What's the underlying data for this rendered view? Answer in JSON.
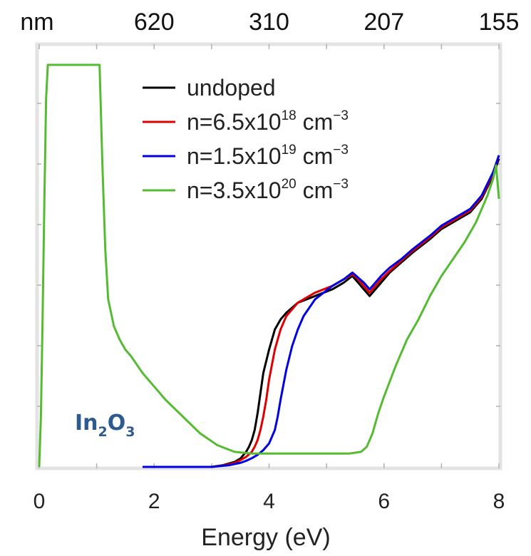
{
  "chart_data": {
    "type": "line",
    "xlabel": "Energy (eV)",
    "x_ticks": [
      "0",
      "2",
      "4",
      "6",
      "8"
    ],
    "xlim": [
      0,
      8
    ],
    "y_ticks": [],
    "top_axis": {
      "unit_label": "nm",
      "ticks": [
        "620",
        "310",
        "207",
        "155"
      ],
      "tick_energies_eV": [
        2,
        4,
        6,
        8
      ]
    },
    "annotation": {
      "base1": "In",
      "sub1": "2",
      "base2": "O",
      "sub2": "3"
    },
    "legend_position": "top-right",
    "series": [
      {
        "key": "undoped",
        "color": "#000000",
        "legend": {
          "prefix": "undoped",
          "sup": "",
          "suffix": "",
          "sup2": ""
        },
        "x": [
          1.8,
          2.2,
          2.6,
          3.0,
          3.2,
          3.4,
          3.5,
          3.6,
          3.65,
          3.7,
          3.75,
          3.8,
          3.85,
          3.9,
          4.0,
          4.1,
          4.2,
          4.3,
          4.5,
          4.8,
          5.1,
          5.3,
          5.45,
          5.55,
          5.65,
          5.75,
          5.85,
          5.95,
          6.1,
          6.3,
          6.5,
          6.8,
          7.0,
          7.2,
          7.5,
          7.7,
          7.9,
          8.0
        ],
        "y": [
          0.0,
          0.0,
          0.0,
          0.0,
          0.005,
          0.015,
          0.025,
          0.045,
          0.06,
          0.08,
          0.11,
          0.16,
          0.22,
          0.28,
          0.35,
          0.41,
          0.44,
          0.46,
          0.49,
          0.51,
          0.53,
          0.55,
          0.57,
          0.55,
          0.53,
          0.51,
          0.53,
          0.55,
          0.58,
          0.61,
          0.64,
          0.68,
          0.71,
          0.73,
          0.76,
          0.8,
          0.87,
          0.92
        ]
      },
      {
        "key": "n1",
        "color": "#e00000",
        "legend": {
          "prefix": "n=6.5x10",
          "sup": "18",
          "suffix": " cm",
          "sup2": "−3"
        },
        "x": [
          1.8,
          2.2,
          2.6,
          3.0,
          3.2,
          3.4,
          3.5,
          3.6,
          3.7,
          3.75,
          3.8,
          3.85,
          3.9,
          3.95,
          4.0,
          4.1,
          4.2,
          4.3,
          4.5,
          4.8,
          5.1,
          5.3,
          5.45,
          5.55,
          5.65,
          5.75,
          5.85,
          5.95,
          6.1,
          6.3,
          6.5,
          6.8,
          7.0,
          7.2,
          7.5,
          7.7,
          7.9,
          8.0
        ],
        "y": [
          0.0,
          0.0,
          0.0,
          0.0,
          0.004,
          0.012,
          0.02,
          0.03,
          0.045,
          0.06,
          0.08,
          0.11,
          0.15,
          0.2,
          0.26,
          0.35,
          0.41,
          0.45,
          0.49,
          0.52,
          0.54,
          0.56,
          0.575,
          0.56,
          0.54,
          0.52,
          0.54,
          0.56,
          0.585,
          0.615,
          0.645,
          0.685,
          0.715,
          0.735,
          0.765,
          0.805,
          0.875,
          0.93
        ]
      },
      {
        "key": "n2",
        "color": "#0000e0",
        "legend": {
          "prefix": "n=1.5x10",
          "sup": "19",
          "suffix": " cm",
          "sup2": "−3"
        },
        "x": [
          1.8,
          2.2,
          2.6,
          3.0,
          3.3,
          3.5,
          3.6,
          3.7,
          3.8,
          3.9,
          4.0,
          4.1,
          4.15,
          4.2,
          4.3,
          4.4,
          4.5,
          4.6,
          4.8,
          5.1,
          5.3,
          5.45,
          5.55,
          5.65,
          5.75,
          5.85,
          5.95,
          6.1,
          6.3,
          6.5,
          6.8,
          7.0,
          7.2,
          7.5,
          7.7,
          7.9,
          8.0
        ],
        "y": [
          0.0,
          0.0,
          0.0,
          0.0,
          0.005,
          0.012,
          0.018,
          0.026,
          0.036,
          0.05,
          0.07,
          0.11,
          0.15,
          0.2,
          0.29,
          0.36,
          0.41,
          0.45,
          0.5,
          0.54,
          0.56,
          0.58,
          0.565,
          0.55,
          0.53,
          0.55,
          0.57,
          0.595,
          0.62,
          0.65,
          0.69,
          0.72,
          0.74,
          0.77,
          0.81,
          0.88,
          0.93
        ]
      },
      {
        "key": "n3",
        "color": "#55bb33",
        "legend": {
          "prefix": "n=3.5x10",
          "sup": "20",
          "suffix": " cm",
          "sup2": "−3"
        },
        "x": [
          0.0,
          0.03,
          0.06,
          0.09,
          0.12,
          0.15,
          1.05,
          1.1,
          1.15,
          1.2,
          1.3,
          1.4,
          1.5,
          1.6,
          1.8,
          2.0,
          2.2,
          2.5,
          2.8,
          3.1,
          3.4,
          3.7,
          4.0,
          4.5,
          5.0,
          5.4,
          5.6,
          5.7,
          5.8,
          5.9,
          6.0,
          6.2,
          6.4,
          6.6,
          6.8,
          7.0,
          7.2,
          7.4,
          7.6,
          7.8,
          7.9,
          7.95,
          8.0
        ],
        "y": [
          0.0,
          0.15,
          0.45,
          0.8,
          1.1,
          1.2,
          1.2,
          0.9,
          0.65,
          0.5,
          0.42,
          0.38,
          0.35,
          0.33,
          0.28,
          0.24,
          0.2,
          0.15,
          0.1,
          0.065,
          0.045,
          0.04,
          0.04,
          0.04,
          0.04,
          0.04,
          0.045,
          0.06,
          0.1,
          0.16,
          0.21,
          0.3,
          0.38,
          0.44,
          0.51,
          0.57,
          0.62,
          0.67,
          0.73,
          0.81,
          0.86,
          0.9,
          0.8
        ]
      }
    ]
  }
}
